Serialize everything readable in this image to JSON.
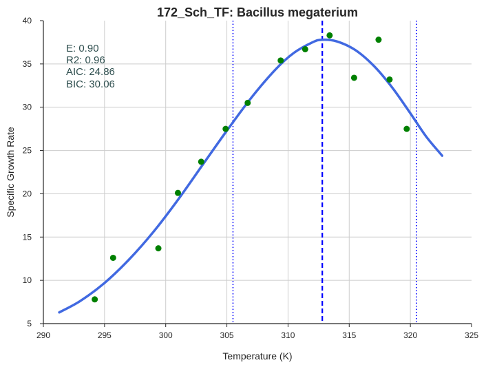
{
  "chart_data": {
    "type": "scatter",
    "title": "172_Sch_TF: Bacillus megaterium",
    "xlabel": "Temperature (K)",
    "ylabel": "Specific Growth Rate",
    "xlim": [
      290,
      325
    ],
    "ylim": [
      5,
      40
    ],
    "xticks": [
      290,
      295,
      300,
      305,
      310,
      315,
      320,
      325
    ],
    "yticks": [
      5,
      10,
      15,
      20,
      25,
      30,
      35,
      40
    ],
    "grid": true,
    "stats": [
      "E:  0.90",
      "R2:  0.96",
      "AIC: 24.86",
      "BIC: 30.06"
    ],
    "points": [
      {
        "x": 294.2,
        "y": 7.8
      },
      {
        "x": 295.7,
        "y": 12.6
      },
      {
        "x": 299.4,
        "y": 13.7
      },
      {
        "x": 301.0,
        "y": 20.1
      },
      {
        "x": 302.9,
        "y": 23.7
      },
      {
        "x": 304.9,
        "y": 27.5
      },
      {
        "x": 306.7,
        "y": 30.5
      },
      {
        "x": 309.4,
        "y": 35.4
      },
      {
        "x": 311.4,
        "y": 36.7
      },
      {
        "x": 313.4,
        "y": 38.3
      },
      {
        "x": 315.4,
        "y": 33.4
      },
      {
        "x": 317.4,
        "y": 37.8
      },
      {
        "x": 318.3,
        "y": 33.2
      },
      {
        "x": 319.7,
        "y": 27.5
      }
    ],
    "fit_curve": [
      {
        "x": 291.3,
        "y": 6.3
      },
      {
        "x": 293.0,
        "y": 7.6
      },
      {
        "x": 295.0,
        "y": 9.7
      },
      {
        "x": 297.0,
        "y": 12.4
      },
      {
        "x": 299.0,
        "y": 15.6
      },
      {
        "x": 301.0,
        "y": 19.3
      },
      {
        "x": 303.0,
        "y": 23.3
      },
      {
        "x": 305.0,
        "y": 27.3
      },
      {
        "x": 307.0,
        "y": 31.1
      },
      {
        "x": 309.0,
        "y": 34.4
      },
      {
        "x": 310.5,
        "y": 36.3
      },
      {
        "x": 312.0,
        "y": 37.5
      },
      {
        "x": 312.8,
        "y": 37.8
      },
      {
        "x": 314.0,
        "y": 37.6
      },
      {
        "x": 315.5,
        "y": 36.6
      },
      {
        "x": 317.0,
        "y": 34.8
      },
      {
        "x": 318.5,
        "y": 32.3
      },
      {
        "x": 320.0,
        "y": 29.3
      },
      {
        "x": 321.3,
        "y": 26.6
      },
      {
        "x": 322.6,
        "y": 24.4
      }
    ],
    "vlines": [
      {
        "x": 312.8,
        "style": "dashed"
      },
      {
        "x": 305.5,
        "style": "dotted"
      },
      {
        "x": 320.5,
        "style": "dotted"
      }
    ],
    "colors": {
      "points": "#008000",
      "fit_curve": "#4169e1",
      "vlines": "#0000ff",
      "grid": "#cccccc",
      "axes": "#262626",
      "stats_text": "#2f4f4f"
    }
  }
}
